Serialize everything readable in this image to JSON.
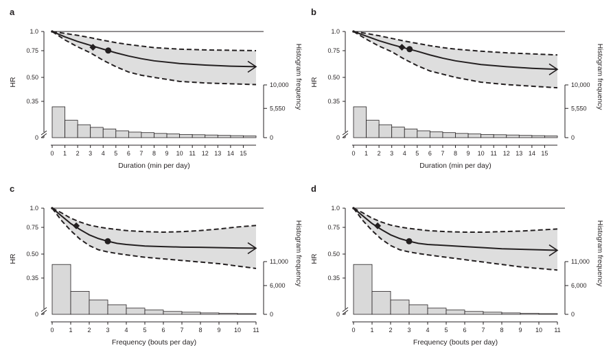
{
  "chart_data": [
    {
      "type": "line",
      "panel_label": "a",
      "xlabel": "Duration (min per day)",
      "ylabel_left": "HR",
      "ylabel_right": "Histogram frequency",
      "xticks": [
        0,
        1,
        2,
        3,
        4,
        5,
        6,
        7,
        8,
        9,
        10,
        11,
        12,
        13,
        14,
        15
      ],
      "xlim": [
        0,
        16
      ],
      "hr_ticks": [
        "1.0",
        "0.75",
        "0.50",
        "0.35",
        "0"
      ],
      "freq_ticks": [
        "10,000",
        "5,550",
        "0"
      ],
      "freq_max": 10000,
      "reference_line_hr": 1.0,
      "hr_curve": {
        "x": [
          0,
          1,
          2,
          3,
          4,
          5,
          6,
          7,
          8,
          10,
          12,
          14,
          16
        ],
        "y": [
          1.0,
          0.93,
          0.87,
          0.82,
          0.77,
          0.73,
          0.7,
          0.675,
          0.655,
          0.63,
          0.615,
          0.605,
          0.6
        ]
      },
      "ci_upper": {
        "x": [
          0,
          1,
          2,
          3,
          4,
          5,
          6,
          7,
          8,
          10,
          12,
          14,
          16
        ],
        "y": [
          1.0,
          0.975,
          0.95,
          0.92,
          0.885,
          0.855,
          0.83,
          0.81,
          0.79,
          0.77,
          0.76,
          0.755,
          0.75
        ]
      },
      "ci_lower": {
        "x": [
          0,
          1,
          2,
          3,
          4,
          5,
          6,
          7,
          8,
          10,
          12,
          14,
          16
        ],
        "y": [
          1.0,
          0.89,
          0.8,
          0.73,
          0.66,
          0.6,
          0.55,
          0.52,
          0.5,
          0.475,
          0.465,
          0.46,
          0.455
        ]
      },
      "markers": [
        {
          "shape": "diamond",
          "x": 3.2,
          "y": 0.795
        },
        {
          "shape": "circle",
          "x": 4.4,
          "y": 0.752
        }
      ],
      "histogram": {
        "bin_starts": [
          0,
          1,
          2,
          3,
          4,
          5,
          6,
          7,
          8,
          9,
          10,
          11,
          12,
          13,
          14,
          15
        ],
        "counts": [
          5850,
          3300,
          2450,
          1950,
          1650,
          1300,
          1050,
          950,
          800,
          700,
          600,
          550,
          500,
          430,
          380,
          330
        ]
      }
    },
    {
      "type": "line",
      "panel_label": "b",
      "xlabel": "Duration (min per day)",
      "ylabel_left": "HR",
      "ylabel_right": "Histogram frequency",
      "xticks": [
        0,
        1,
        2,
        3,
        4,
        5,
        6,
        7,
        8,
        9,
        10,
        11,
        12,
        13,
        14,
        15
      ],
      "xlim": [
        0,
        16
      ],
      "hr_ticks": [
        "1.0",
        "0.75",
        "0.50",
        "0.35",
        "0"
      ],
      "freq_ticks": [
        "10,000",
        "5,550",
        "0"
      ],
      "freq_max": 10000,
      "reference_line_hr": 1.0,
      "hr_curve": {
        "x": [
          0,
          1,
          2,
          3,
          4,
          5,
          6,
          7,
          8,
          10,
          12,
          14,
          16
        ],
        "y": [
          1.0,
          0.94,
          0.88,
          0.83,
          0.785,
          0.745,
          0.71,
          0.68,
          0.655,
          0.62,
          0.6,
          0.585,
          0.575
        ]
      },
      "ci_upper": {
        "x": [
          0,
          1,
          2,
          3,
          4,
          5,
          6,
          7,
          8,
          10,
          12,
          14,
          16
        ],
        "y": [
          1.0,
          0.975,
          0.945,
          0.91,
          0.875,
          0.845,
          0.815,
          0.79,
          0.77,
          0.745,
          0.73,
          0.72,
          0.71
        ]
      },
      "ci_lower": {
        "x": [
          0,
          1,
          2,
          3,
          4,
          5,
          6,
          7,
          8,
          10,
          12,
          14,
          16
        ],
        "y": [
          1.0,
          0.9,
          0.81,
          0.74,
          0.67,
          0.61,
          0.56,
          0.53,
          0.5,
          0.47,
          0.455,
          0.445,
          0.435
        ]
      },
      "markers": [
        {
          "shape": "diamond",
          "x": 3.8,
          "y": 0.795
        },
        {
          "shape": "circle",
          "x": 4.4,
          "y": 0.77
        }
      ],
      "histogram": {
        "bin_starts": [
          0,
          1,
          2,
          3,
          4,
          5,
          6,
          7,
          8,
          9,
          10,
          11,
          12,
          13,
          14,
          15
        ],
        "counts": [
          5850,
          3300,
          2450,
          2000,
          1650,
          1300,
          1100,
          950,
          800,
          700,
          600,
          550,
          500,
          430,
          380,
          330
        ]
      }
    },
    {
      "type": "line",
      "panel_label": "c",
      "xlabel": "Frequency (bouts per day)",
      "ylabel_left": "HR",
      "ylabel_right": "Histogram frequency",
      "xticks": [
        0,
        1,
        2,
        3,
        4,
        5,
        6,
        7,
        8,
        9,
        10,
        11
      ],
      "xlim": [
        0,
        11
      ],
      "hr_ticks": [
        "1.0",
        "0.75",
        "0.50",
        "0.35",
        "0"
      ],
      "freq_ticks": [
        "11,000",
        "6,000",
        "0"
      ],
      "freq_max": 11000,
      "reference_line_hr": 1.0,
      "hr_curve": {
        "x": [
          0,
          0.5,
          1,
          1.5,
          2,
          2.5,
          3,
          3.5,
          4,
          5,
          6,
          7,
          8,
          9,
          10,
          11
        ],
        "y": [
          1.0,
          0.9,
          0.8,
          0.73,
          0.68,
          0.645,
          0.62,
          0.6,
          0.59,
          0.575,
          0.57,
          0.565,
          0.563,
          0.56,
          0.557,
          0.555
        ]
      },
      "ci_upper": {
        "x": [
          0,
          0.5,
          1,
          1.5,
          2,
          2.5,
          3,
          3.5,
          4,
          5,
          6,
          7,
          8,
          9,
          10,
          11
        ],
        "y": [
          1.0,
          0.94,
          0.87,
          0.82,
          0.78,
          0.755,
          0.74,
          0.73,
          0.72,
          0.71,
          0.705,
          0.71,
          0.72,
          0.735,
          0.755,
          0.775
        ]
      },
      "ci_lower": {
        "x": [
          0,
          0.5,
          1,
          1.5,
          2,
          2.5,
          3,
          3.5,
          4,
          5,
          6,
          7,
          8,
          9,
          10,
          11
        ],
        "y": [
          1.0,
          0.84,
          0.72,
          0.64,
          0.58,
          0.54,
          0.52,
          0.505,
          0.495,
          0.48,
          0.47,
          0.46,
          0.45,
          0.44,
          0.425,
          0.41
        ]
      },
      "markers": [
        {
          "shape": "diamond",
          "x": 1.3,
          "y": 0.77
        },
        {
          "shape": "circle",
          "x": 3.0,
          "y": 0.62
        }
      ],
      "histogram": {
        "bin_starts": [
          0,
          1,
          2,
          3,
          4,
          5,
          6,
          7,
          8,
          9,
          10
        ],
        "counts": [
          10400,
          4800,
          3000,
          2000,
          1300,
          900,
          600,
          450,
          300,
          200,
          150
        ]
      }
    },
    {
      "type": "line",
      "panel_label": "d",
      "xlabel": "Frequency (bouts per day)",
      "ylabel_left": "HR",
      "ylabel_right": "Histogram frequency",
      "xticks": [
        0,
        1,
        2,
        3,
        4,
        5,
        6,
        7,
        8,
        9,
        10,
        11
      ],
      "xlim": [
        0,
        11
      ],
      "hr_ticks": [
        "1.0",
        "0.75",
        "0.50",
        "0.35",
        "0"
      ],
      "freq_ticks": [
        "11,000",
        "6,000",
        "0"
      ],
      "freq_max": 11000,
      "reference_line_hr": 1.0,
      "hr_curve": {
        "x": [
          0,
          0.5,
          1,
          1.5,
          2,
          2.5,
          3,
          3.5,
          4,
          5,
          6,
          7,
          8,
          9,
          10,
          11
        ],
        "y": [
          1.0,
          0.9,
          0.8,
          0.73,
          0.68,
          0.645,
          0.62,
          0.6,
          0.59,
          0.58,
          0.57,
          0.56,
          0.55,
          0.545,
          0.54,
          0.535
        ]
      },
      "ci_upper": {
        "x": [
          0,
          0.5,
          1,
          1.5,
          2,
          2.5,
          3,
          3.5,
          4,
          5,
          6,
          7,
          8,
          9,
          10,
          11
        ],
        "y": [
          1.0,
          0.94,
          0.87,
          0.82,
          0.78,
          0.755,
          0.74,
          0.73,
          0.72,
          0.71,
          0.705,
          0.705,
          0.71,
          0.715,
          0.725,
          0.735
        ]
      },
      "ci_lower": {
        "x": [
          0,
          0.5,
          1,
          1.5,
          2,
          2.5,
          3,
          3.5,
          4,
          5,
          6,
          7,
          8,
          9,
          10,
          11
        ],
        "y": [
          1.0,
          0.84,
          0.72,
          0.64,
          0.58,
          0.54,
          0.52,
          0.505,
          0.495,
          0.48,
          0.465,
          0.45,
          0.435,
          0.42,
          0.41,
          0.4
        ]
      },
      "markers": [
        {
          "shape": "diamond",
          "x": 1.3,
          "y": 0.77
        },
        {
          "shape": "circle",
          "x": 3.0,
          "y": 0.62
        }
      ],
      "histogram": {
        "bin_starts": [
          0,
          1,
          2,
          3,
          4,
          5,
          6,
          7,
          8,
          9,
          10
        ],
        "counts": [
          10400,
          4800,
          3000,
          2000,
          1300,
          900,
          600,
          450,
          300,
          200,
          150
        ]
      }
    }
  ]
}
